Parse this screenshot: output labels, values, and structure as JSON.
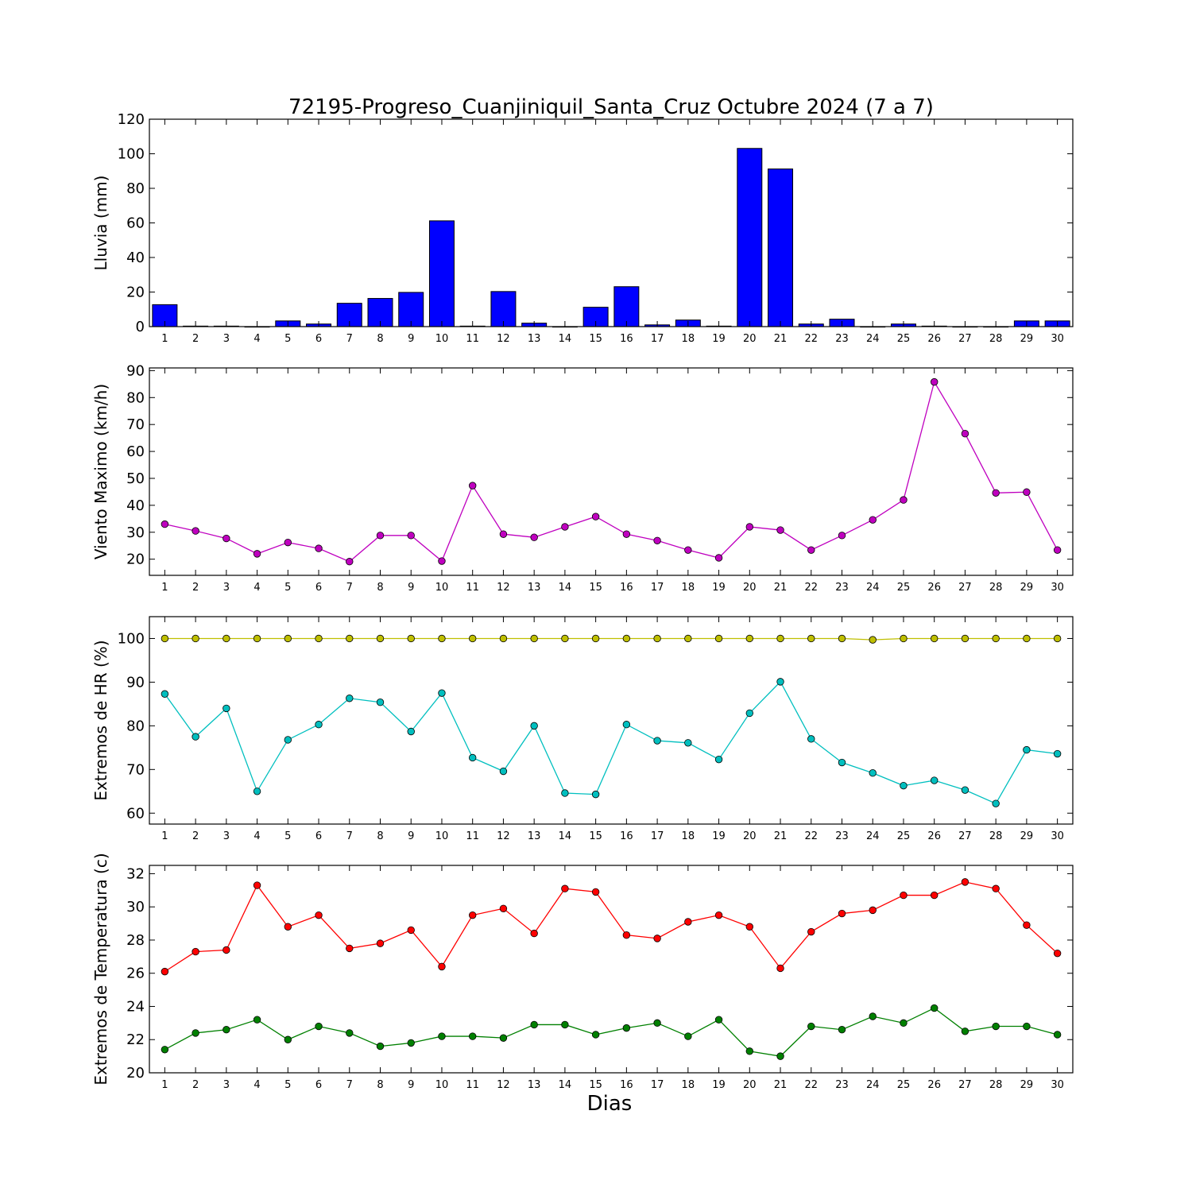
{
  "chart_data": [
    {
      "type": "bar",
      "title": "72195-Progreso_Cuanjiniquil_Santa_Cruz Octubre 2024  (7 a 7)",
      "ylabel": "Lluvia (mm)",
      "xlabel": "",
      "ylim": [
        0,
        120
      ],
      "yticks": [
        0,
        20,
        40,
        60,
        80,
        100,
        120
      ],
      "categories": [
        1,
        2,
        3,
        4,
        5,
        6,
        7,
        8,
        9,
        10,
        11,
        12,
        13,
        14,
        15,
        16,
        17,
        18,
        19,
        20,
        21,
        22,
        23,
        24,
        25,
        26,
        27,
        28,
        29,
        30
      ],
      "series": [
        {
          "color": "#0000ff",
          "values": [
            12.7,
            0.3,
            0.3,
            0,
            3.3,
            1.5,
            13.5,
            16.3,
            19.8,
            61.2,
            0.3,
            20.3,
            2,
            0,
            11.2,
            23.1,
            1,
            3.8,
            0.3,
            103.1,
            91.2,
            1.5,
            4.3,
            0,
            1.5,
            0.3,
            0,
            0,
            3.3,
            3.3
          ]
        }
      ]
    },
    {
      "type": "line",
      "ylabel": "Viento Maximo (km/h)",
      "xlabel": "",
      "ylim": [
        14,
        91
      ],
      "yticks": [
        20,
        30,
        40,
        50,
        60,
        70,
        80,
        90
      ],
      "categories": [
        1,
        2,
        3,
        4,
        5,
        6,
        7,
        8,
        9,
        10,
        11,
        12,
        13,
        14,
        15,
        16,
        17,
        18,
        19,
        20,
        21,
        22,
        23,
        24,
        25,
        26,
        27,
        28,
        29,
        30
      ],
      "series": [
        {
          "color": "#bf00bf",
          "values": [
            33,
            30.5,
            27.7,
            22,
            26.2,
            24,
            19.1,
            28.8,
            28.8,
            19.3,
            47.3,
            29.3,
            28.1,
            32,
            35.8,
            29.3,
            26.9,
            23.4,
            20.5,
            32,
            30.8,
            23.4,
            28.8,
            34.6,
            42,
            85.8,
            66.6,
            44.6,
            44.9,
            23.4
          ]
        }
      ]
    },
    {
      "type": "line",
      "ylabel": "Extremos de HR (%)",
      "xlabel": "",
      "ylim": [
        57.5,
        105
      ],
      "yticks": [
        60,
        70,
        80,
        90,
        100
      ],
      "categories": [
        1,
        2,
        3,
        4,
        5,
        6,
        7,
        8,
        9,
        10,
        11,
        12,
        13,
        14,
        15,
        16,
        17,
        18,
        19,
        20,
        21,
        22,
        23,
        24,
        25,
        26,
        27,
        28,
        29,
        30
      ],
      "series": [
        {
          "color": "#bfbf00",
          "values": [
            100,
            100,
            100,
            100,
            100,
            100,
            100,
            100,
            100,
            100,
            100,
            100,
            100,
            100,
            100,
            100,
            100,
            100,
            100,
            100,
            100,
            100,
            100,
            99.7,
            100,
            100,
            100,
            100,
            100,
            100
          ]
        },
        {
          "color": "#00bfbf",
          "values": [
            87.3,
            77.5,
            84,
            65,
            76.8,
            80.3,
            86.3,
            85.4,
            78.7,
            87.5,
            72.7,
            69.6,
            80,
            64.6,
            64.3,
            80.3,
            76.6,
            76.1,
            72.3,
            82.9,
            90.1,
            77,
            71.6,
            69.2,
            66.3,
            67.5,
            65.3,
            62.2,
            74.5,
            73.6
          ]
        }
      ]
    },
    {
      "type": "line",
      "ylabel": "Extremos de Temperatura (c)",
      "xlabel": "Dias",
      "ylim": [
        20,
        32.5
      ],
      "yticks": [
        20,
        22,
        24,
        26,
        28,
        30,
        32
      ],
      "categories": [
        1,
        2,
        3,
        4,
        5,
        6,
        7,
        8,
        9,
        10,
        11,
        12,
        13,
        14,
        15,
        16,
        17,
        18,
        19,
        20,
        21,
        22,
        23,
        24,
        25,
        26,
        27,
        28,
        29,
        30
      ],
      "series": [
        {
          "color": "#ff0000",
          "values": [
            26.1,
            27.3,
            27.4,
            31.3,
            28.8,
            29.5,
            27.5,
            27.8,
            28.6,
            26.4,
            29.5,
            29.9,
            28.4,
            31.1,
            30.9,
            28.3,
            28.1,
            29.1,
            29.5,
            28.8,
            26.3,
            28.5,
            29.6,
            29.8,
            30.7,
            30.7,
            31.5,
            31.1,
            28.9,
            27.2
          ]
        },
        {
          "color": "#008000",
          "values": [
            21.4,
            22.4,
            22.6,
            23.2,
            22,
            22.8,
            22.4,
            21.6,
            21.8,
            22.2,
            22.2,
            22.1,
            22.9,
            22.9,
            22.3,
            22.7,
            23,
            22.2,
            23.2,
            21.3,
            21,
            22.8,
            22.6,
            23.4,
            23,
            23.9,
            22.5,
            22.8,
            22.8,
            22.3
          ]
        }
      ]
    }
  ]
}
